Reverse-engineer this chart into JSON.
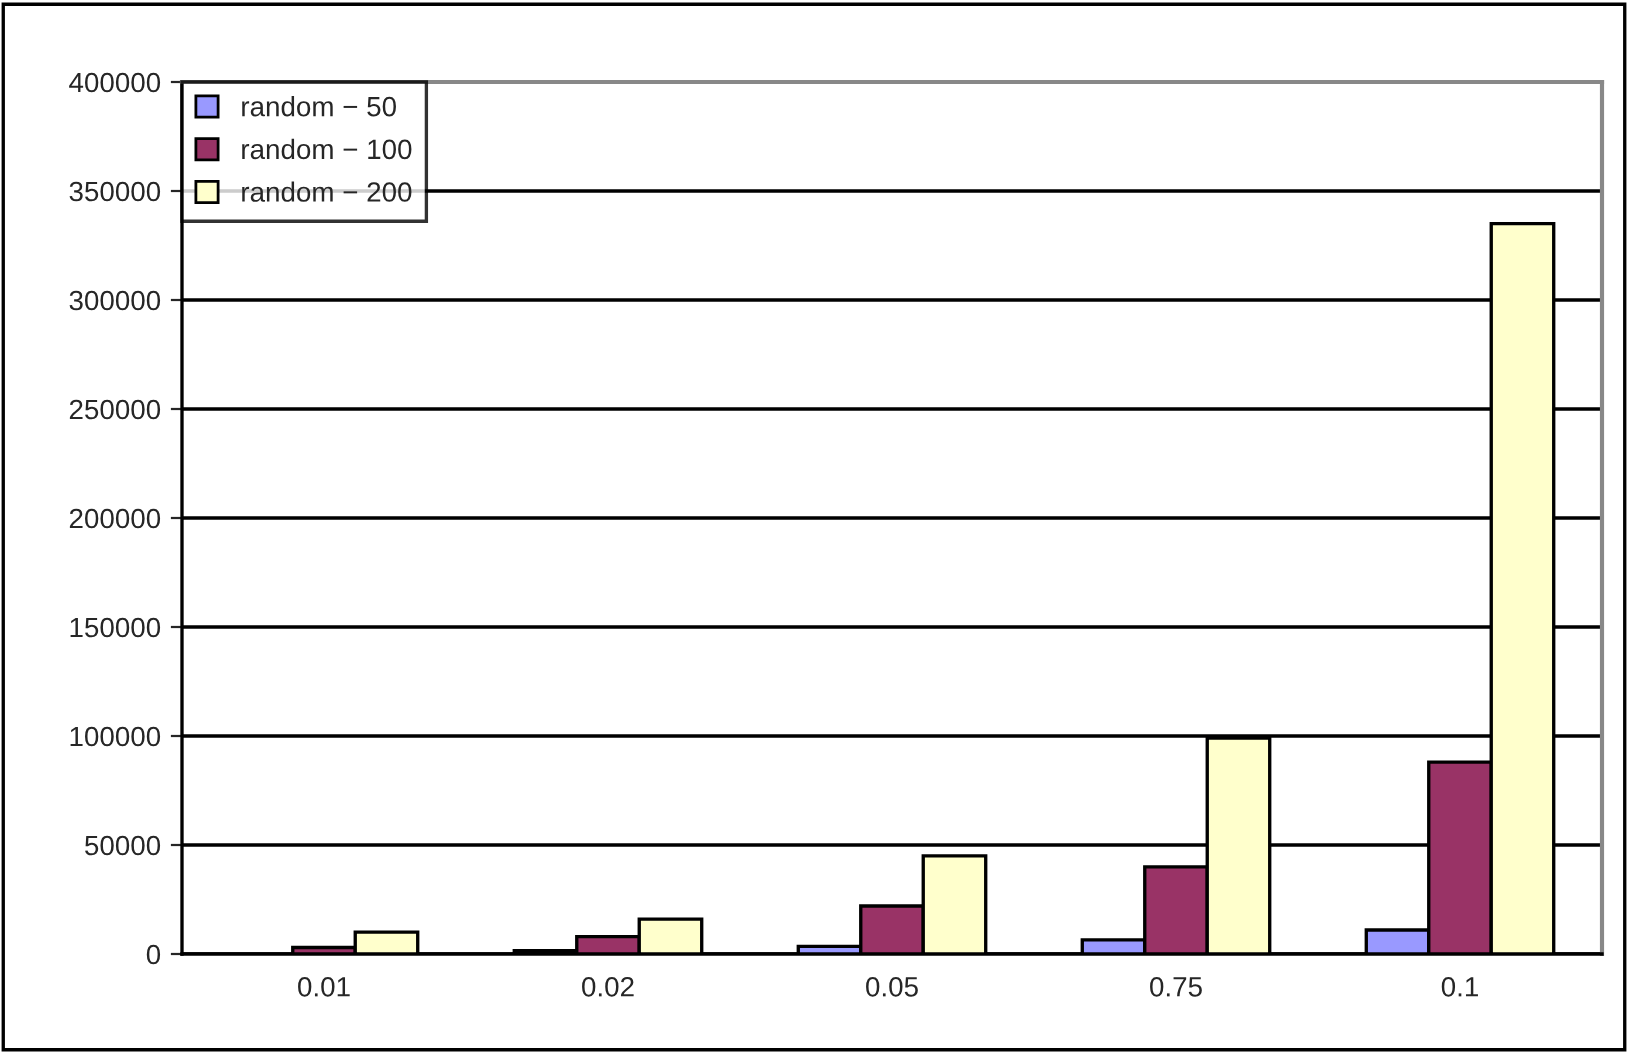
{
  "chart_data": {
    "type": "bar",
    "categories": [
      "0.01",
      "0.02",
      "0.05",
      "0.75",
      "0.1"
    ],
    "series": [
      {
        "name": "random − 50",
        "color": "#9999ff",
        "values": [
          null,
          1500,
          3500,
          6500,
          11000
        ]
      },
      {
        "name": "random − 100",
        "color": "#993366",
        "values": [
          3000,
          8000,
          22000,
          40000,
          88000
        ]
      },
      {
        "name": "random − 200",
        "color": "#ffffcc",
        "values": [
          10000,
          16000,
          45000,
          99000,
          335000
        ]
      }
    ],
    "ylim": [
      0,
      400000
    ],
    "yticks": [
      0,
      50000,
      100000,
      150000,
      200000,
      250000,
      300000,
      350000,
      400000
    ],
    "grid": "y",
    "legend": "top left"
  }
}
